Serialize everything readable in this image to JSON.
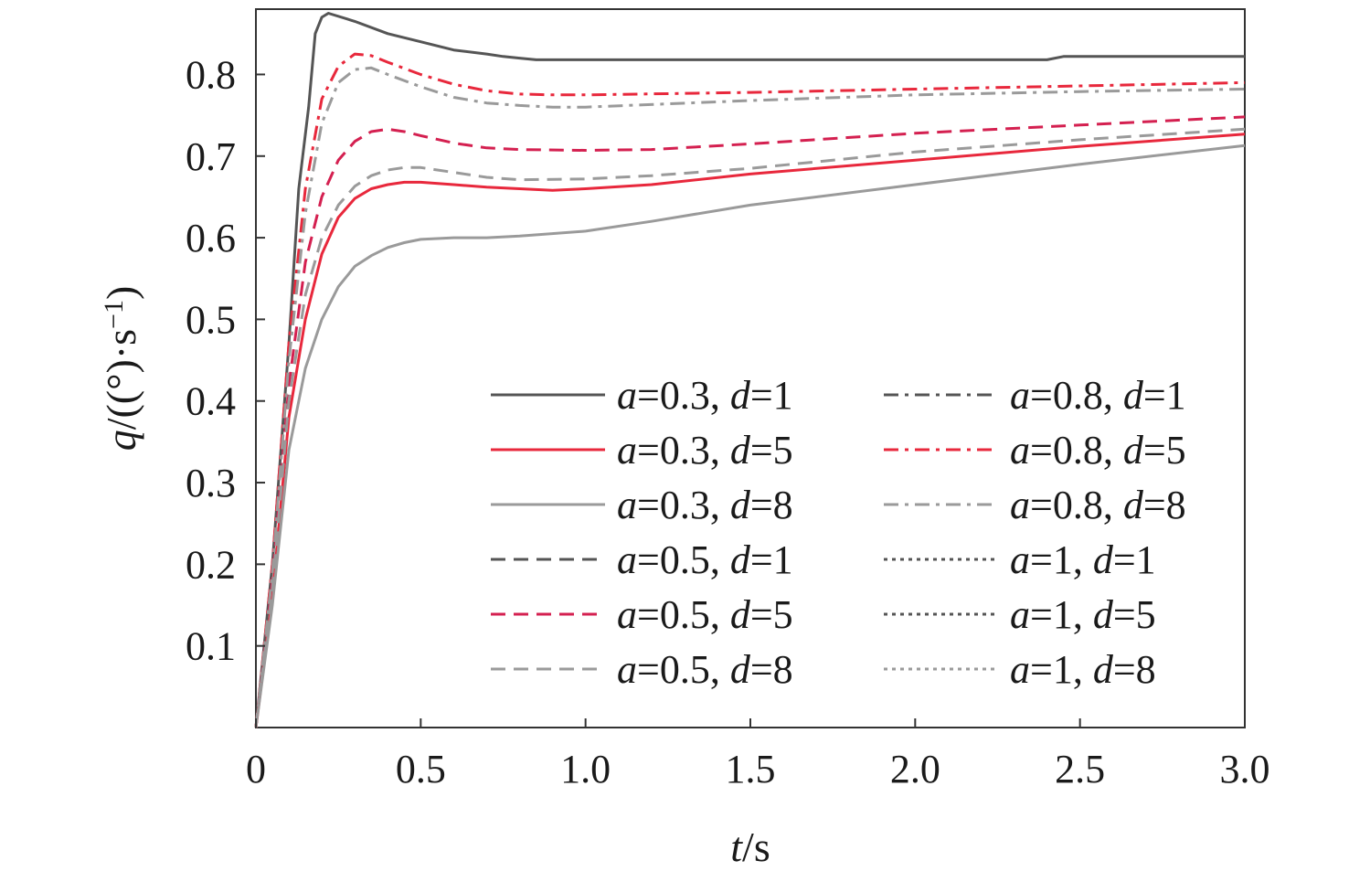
{
  "chart_data": {
    "type": "line",
    "xlabel": {
      "var": "t",
      "unit": "/s"
    },
    "ylabel": {
      "var": "q",
      "unit": "/((°)·s",
      "sup": "−1",
      "close": ")"
    },
    "xlim": [
      0,
      3.0
    ],
    "ylim": [
      0,
      0.88
    ],
    "x_ticks": [
      {
        "value": 0,
        "label": "0"
      },
      {
        "value": 0.5,
        "label": "0.5"
      },
      {
        "value": 1.0,
        "label": "1.0"
      },
      {
        "value": 1.5,
        "label": "1.5"
      },
      {
        "value": 2.0,
        "label": "2.0"
      },
      {
        "value": 2.5,
        "label": "2.5"
      },
      {
        "value": 3.0,
        "label": "3.0"
      }
    ],
    "y_ticks": [
      {
        "value": 0.1,
        "label": "0.1"
      },
      {
        "value": 0.2,
        "label": "0.2"
      },
      {
        "value": 0.3,
        "label": "0.3"
      },
      {
        "value": 0.4,
        "label": "0.4"
      },
      {
        "value": 0.5,
        "label": "0.5"
      },
      {
        "value": 0.6,
        "label": "0.6"
      },
      {
        "value": 0.7,
        "label": "0.7"
      },
      {
        "value": 0.8,
        "label": "0.8"
      }
    ],
    "grid": false,
    "legend_position": "lower-right",
    "series": [
      {
        "name": "a=0.3, d=1",
        "a": "0.3",
        "d": "1",
        "color": "#555555",
        "dash": "solid",
        "draw": true,
        "x": [
          0,
          0.05,
          0.1,
          0.13,
          0.16,
          0.18,
          0.2,
          0.22,
          0.3,
          0.4,
          0.5,
          0.6,
          0.7,
          0.75,
          0.8,
          0.85,
          1.0,
          1.5,
          2.0,
          2.4,
          2.45,
          2.5,
          3.0
        ],
        "y": [
          0,
          0.2,
          0.47,
          0.66,
          0.76,
          0.85,
          0.87,
          0.875,
          0.865,
          0.85,
          0.84,
          0.83,
          0.825,
          0.822,
          0.82,
          0.818,
          0.818,
          0.818,
          0.818,
          0.818,
          0.822,
          0.822,
          0.822
        ]
      },
      {
        "name": "a=0.3, d=5",
        "a": "0.3",
        "d": "5",
        "color": "#e8283c",
        "dash": "solid",
        "draw": true,
        "x": [
          0,
          0.05,
          0.1,
          0.15,
          0.2,
          0.25,
          0.3,
          0.35,
          0.4,
          0.45,
          0.5,
          0.6,
          0.7,
          0.8,
          0.9,
          1.0,
          1.2,
          1.5,
          2.0,
          2.5,
          3.0
        ],
        "y": [
          0,
          0.16,
          0.38,
          0.5,
          0.58,
          0.625,
          0.648,
          0.66,
          0.665,
          0.668,
          0.668,
          0.665,
          0.662,
          0.66,
          0.658,
          0.66,
          0.665,
          0.678,
          0.695,
          0.712,
          0.727
        ]
      },
      {
        "name": "a=0.3, d=8",
        "a": "0.3",
        "d": "8",
        "color": "#9a9a9a",
        "dash": "solid",
        "draw": true,
        "x": [
          0,
          0.05,
          0.1,
          0.15,
          0.2,
          0.25,
          0.3,
          0.35,
          0.4,
          0.45,
          0.5,
          0.6,
          0.7,
          0.8,
          1.0,
          1.2,
          1.5,
          2.0,
          2.5,
          3.0
        ],
        "y": [
          0,
          0.15,
          0.34,
          0.44,
          0.5,
          0.54,
          0.565,
          0.578,
          0.588,
          0.594,
          0.598,
          0.6,
          0.6,
          0.602,
          0.608,
          0.62,
          0.64,
          0.665,
          0.69,
          0.713
        ]
      },
      {
        "name": "a=0.5, d=1",
        "a": "0.5",
        "d": "1",
        "color": "#555555",
        "dash": "dashed",
        "draw": false,
        "x": [],
        "y": []
      },
      {
        "name": "a=0.5, d=5",
        "a": "0.5",
        "d": "5",
        "color": "#d42050",
        "dash": "dashed",
        "draw": true,
        "x": [
          0,
          0.05,
          0.1,
          0.15,
          0.2,
          0.25,
          0.3,
          0.35,
          0.4,
          0.45,
          0.5,
          0.6,
          0.7,
          0.8,
          1.0,
          1.2,
          1.5,
          2.0,
          2.5,
          3.0
        ],
        "y": [
          0,
          0.18,
          0.42,
          0.57,
          0.65,
          0.695,
          0.718,
          0.73,
          0.733,
          0.73,
          0.725,
          0.716,
          0.71,
          0.708,
          0.707,
          0.708,
          0.715,
          0.728,
          0.738,
          0.748
        ]
      },
      {
        "name": "a=0.5, d=8",
        "a": "0.5",
        "d": "8",
        "color": "#9a9a9a",
        "dash": "dashed",
        "draw": true,
        "x": [
          0,
          0.05,
          0.1,
          0.15,
          0.2,
          0.25,
          0.3,
          0.35,
          0.4,
          0.45,
          0.5,
          0.6,
          0.7,
          0.8,
          1.0,
          1.2,
          1.5,
          2.0,
          2.5,
          3.0
        ],
        "y": [
          0,
          0.17,
          0.4,
          0.53,
          0.6,
          0.64,
          0.663,
          0.676,
          0.683,
          0.686,
          0.686,
          0.68,
          0.674,
          0.671,
          0.672,
          0.676,
          0.685,
          0.705,
          0.72,
          0.733
        ]
      },
      {
        "name": "a=0.8, d=1",
        "a": "0.8",
        "d": "1",
        "color": "#555555",
        "dash": "dashdot",
        "draw": false,
        "x": [],
        "y": []
      },
      {
        "name": "a=0.8, d=5",
        "a": "0.8",
        "d": "5",
        "color": "#e8283c",
        "dash": "dashdot",
        "draw": true,
        "x": [
          0,
          0.05,
          0.1,
          0.15,
          0.2,
          0.25,
          0.3,
          0.35,
          0.4,
          0.5,
          0.6,
          0.7,
          0.8,
          0.9,
          1.0,
          1.5,
          2.0,
          2.5,
          3.0
        ],
        "y": [
          0,
          0.2,
          0.47,
          0.66,
          0.77,
          0.81,
          0.825,
          0.823,
          0.815,
          0.8,
          0.788,
          0.78,
          0.776,
          0.775,
          0.775,
          0.778,
          0.782,
          0.786,
          0.79
        ]
      },
      {
        "name": "a=0.8, d=8",
        "a": "0.8",
        "d": "8",
        "color": "#9a9a9a",
        "dash": "dashdot",
        "draw": true,
        "x": [
          0,
          0.05,
          0.1,
          0.15,
          0.2,
          0.25,
          0.3,
          0.35,
          0.4,
          0.5,
          0.6,
          0.7,
          0.8,
          0.9,
          1.0,
          1.5,
          2.0,
          2.5,
          3.0
        ],
        "y": [
          0,
          0.19,
          0.45,
          0.63,
          0.74,
          0.79,
          0.806,
          0.808,
          0.8,
          0.785,
          0.772,
          0.765,
          0.762,
          0.76,
          0.76,
          0.768,
          0.775,
          0.779,
          0.782
        ]
      },
      {
        "name": "a=1, d=1",
        "a": "1",
        "d": "1",
        "color": "#555555",
        "dash": "dotted",
        "draw": false,
        "x": [],
        "y": []
      },
      {
        "name": "a=1, d=5",
        "a": "1",
        "d": "5",
        "color": "#555555",
        "dash": "dotted",
        "draw": false,
        "x": [],
        "y": []
      },
      {
        "name": "a=1, d=8",
        "a": "1",
        "d": "8",
        "color": "#9a9a9a",
        "dash": "dotted",
        "draw": false,
        "x": [],
        "y": []
      }
    ]
  }
}
